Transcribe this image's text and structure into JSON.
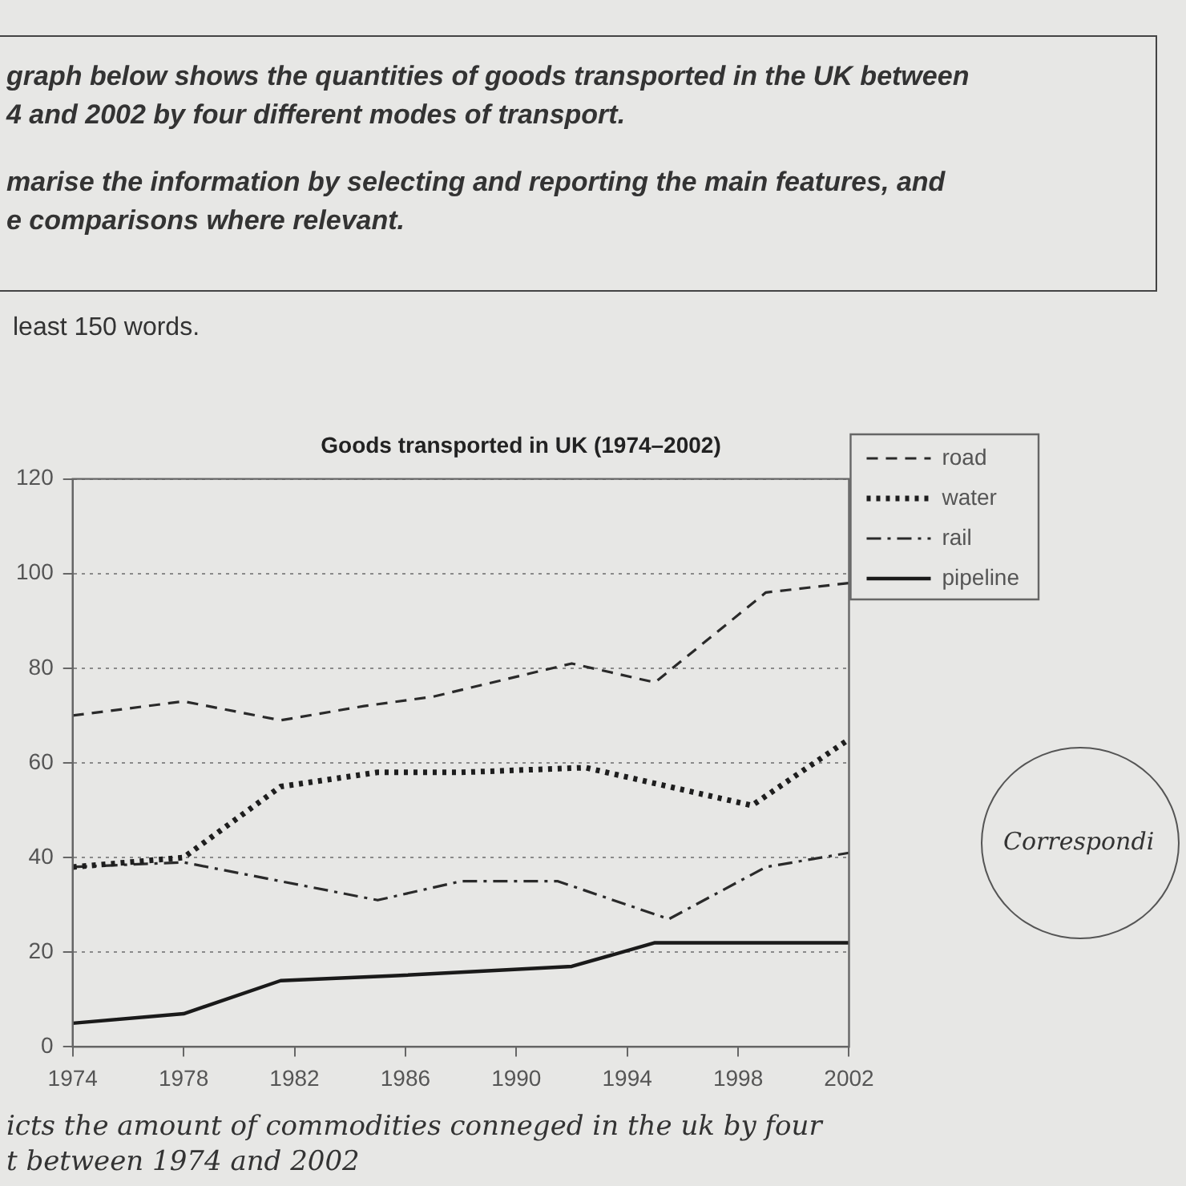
{
  "chart_data": {
    "type": "line",
    "title": "Goods transported in UK (1974–2002)",
    "annotations": [
      "graph below shows the quantities of goods transported in the UK between",
      "4 and 2002 by four different modes of transport.",
      "marise the information by selecting and reporting the main features, and",
      "e comparisons where relevant.",
      "least 150 words.",
      "icts the amount of commodities conneged in the uk by four",
      "t between 1974 and 2002",
      "Correspondi"
    ],
    "xlim": [
      1974,
      2002
    ],
    "xticks": [
      1974,
      1978,
      1982,
      1986,
      1990,
      1994,
      1998,
      2002
    ],
    "ylim": [
      0,
      120
    ],
    "yticks": [
      0,
      20,
      40,
      60,
      80,
      100,
      120
    ],
    "grid": "y",
    "legend": "right",
    "series": [
      {
        "name": "road",
        "color": "#2a2a2a",
        "line_style": "dashed",
        "x": [
          1974,
          1978,
          1981.5,
          1984.5,
          1987,
          1992,
          1995,
          1999,
          2002
        ],
        "values": [
          70,
          73,
          69,
          72,
          74,
          81,
          77,
          96,
          98
        ]
      },
      {
        "name": "water",
        "color": "#1e1e1e",
        "line_style": "dotted",
        "x": [
          1974,
          1978,
          1981.5,
          1985,
          1988,
          1992.5,
          1998.5,
          2002
        ],
        "values": [
          38,
          40,
          55,
          58,
          58,
          59,
          51,
          65
        ]
      },
      {
        "name": "rail",
        "color": "#2a2a2a",
        "line_style": "dashdot",
        "x": [
          1974,
          1978,
          1985,
          1988,
          1991.5,
          1995.5,
          1999,
          2002
        ],
        "values": [
          38,
          39,
          31,
          35,
          35,
          27,
          38,
          41
        ]
      },
      {
        "name": "pipeline",
        "color": "#1a1a1a",
        "line_style": "solid",
        "x": [
          1974,
          1978,
          1981.5,
          1985.5,
          1992,
          1995,
          2002
        ],
        "values": [
          5,
          7,
          14,
          15,
          17,
          22,
          22
        ]
      }
    ]
  }
}
